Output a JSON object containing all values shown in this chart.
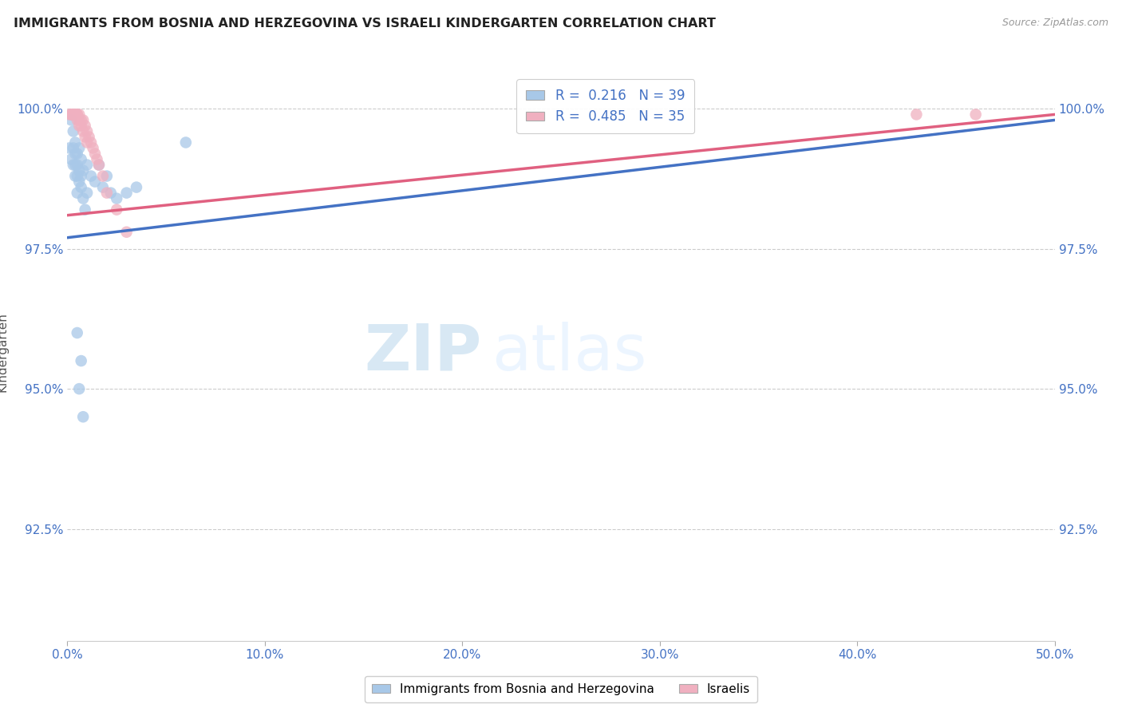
{
  "title": "IMMIGRANTS FROM BOSNIA AND HERZEGOVINA VS ISRAELI KINDERGARTEN CORRELATION CHART",
  "source": "Source: ZipAtlas.com",
  "ylabel_label": "Kindergarten",
  "xlim": [
    0.0,
    0.5
  ],
  "ylim": [
    0.905,
    1.008
  ],
  "xticks": [
    0.0,
    0.1,
    0.2,
    0.3,
    0.4,
    0.5
  ],
  "xticklabels": [
    "0.0%",
    "10.0%",
    "20.0%",
    "30.0%",
    "40.0%",
    "50.0%"
  ],
  "yticks": [
    0.925,
    0.95,
    0.975,
    1.0
  ],
  "yticklabels": [
    "92.5%",
    "95.0%",
    "97.5%",
    "100.0%"
  ],
  "blue_R": 0.216,
  "blue_N": 39,
  "pink_R": 0.485,
  "pink_N": 35,
  "blue_color": "#a8c8e8",
  "pink_color": "#f0b0c0",
  "blue_line_color": "#4472c4",
  "pink_line_color": "#e06080",
  "legend_label_blue": "Immigrants from Bosnia and Herzegovina",
  "legend_label_pink": "Israelis",
  "blue_points_x": [
    0.001,
    0.002,
    0.002,
    0.003,
    0.003,
    0.003,
    0.004,
    0.004,
    0.004,
    0.004,
    0.005,
    0.005,
    0.005,
    0.005,
    0.006,
    0.006,
    0.006,
    0.007,
    0.007,
    0.007,
    0.008,
    0.008,
    0.01,
    0.01,
    0.012,
    0.014,
    0.016,
    0.018,
    0.02,
    0.022,
    0.005,
    0.006,
    0.007,
    0.008,
    0.009,
    0.025,
    0.03,
    0.035,
    0.06
  ],
  "blue_points_y": [
    0.993,
    0.998,
    0.991,
    0.993,
    0.99,
    0.996,
    0.992,
    0.988,
    0.99,
    0.994,
    0.99,
    0.985,
    0.988,
    0.992,
    0.987,
    0.993,
    0.989,
    0.991,
    0.988,
    0.986,
    0.989,
    0.984,
    0.99,
    0.985,
    0.988,
    0.987,
    0.99,
    0.986,
    0.988,
    0.985,
    0.96,
    0.95,
    0.955,
    0.945,
    0.982,
    0.984,
    0.985,
    0.986,
    0.994
  ],
  "pink_points_x": [
    0.001,
    0.002,
    0.002,
    0.003,
    0.003,
    0.003,
    0.004,
    0.004,
    0.004,
    0.005,
    0.005,
    0.005,
    0.006,
    0.006,
    0.006,
    0.007,
    0.007,
    0.008,
    0.008,
    0.009,
    0.009,
    0.01,
    0.01,
    0.011,
    0.012,
    0.013,
    0.014,
    0.015,
    0.016,
    0.018,
    0.02,
    0.025,
    0.03,
    0.43,
    0.46
  ],
  "pink_points_y": [
    0.999,
    0.999,
    0.999,
    0.999,
    0.999,
    0.999,
    0.999,
    0.999,
    0.999,
    0.999,
    0.998,
    0.999,
    0.999,
    0.998,
    0.997,
    0.998,
    0.997,
    0.998,
    0.996,
    0.997,
    0.995,
    0.996,
    0.994,
    0.995,
    0.994,
    0.993,
    0.992,
    0.991,
    0.99,
    0.988,
    0.985,
    0.982,
    0.978,
    0.999,
    0.999
  ],
  "blue_trendline_x0": 0.0,
  "blue_trendline_x1": 0.5,
  "blue_trendline_y0": 0.977,
  "blue_trendline_y1": 0.998,
  "pink_trendline_x0": 0.0,
  "pink_trendline_x1": 0.5,
  "pink_trendline_y0": 0.981,
  "pink_trendline_y1": 0.999
}
